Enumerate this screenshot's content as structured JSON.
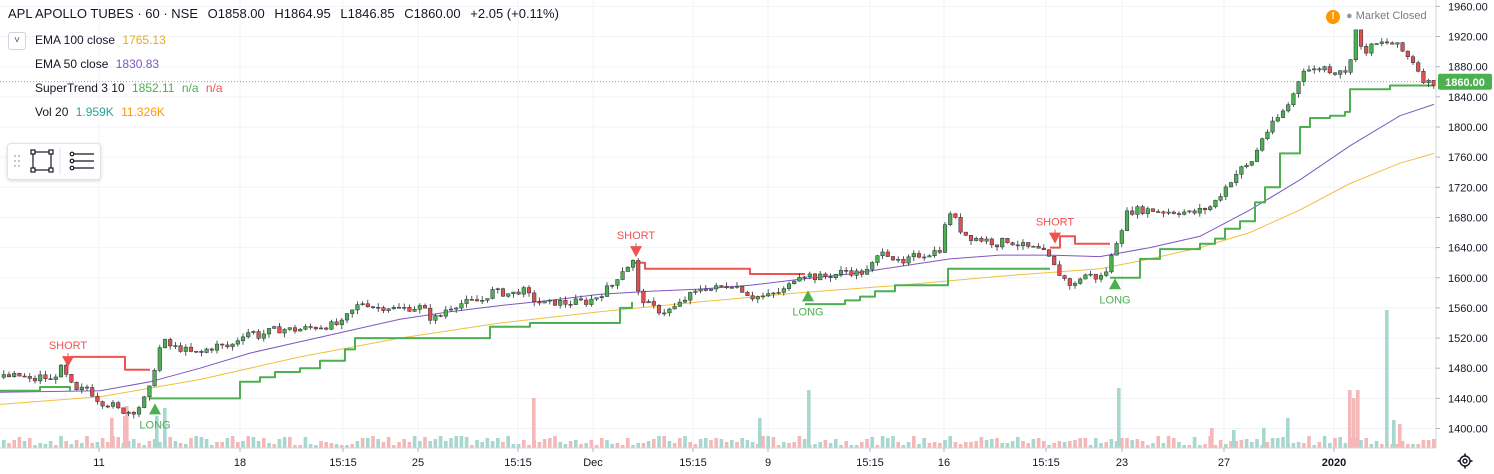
{
  "header": {
    "symbol": "APL APOLLO TUBES · 60 · NSE",
    "open": "O1858.00",
    "high": "H1864.95",
    "low": "L1846.85",
    "close": "C1860.00",
    "change": "+2.05 (+0.11%)",
    "market_status": "Market Closed",
    "collapse_glyph": "˅"
  },
  "legend": [
    {
      "label": "EMA 100 close",
      "value": "1765.13",
      "color": "#e5ac21"
    },
    {
      "label": "EMA 50 close",
      "value": "1830.83",
      "color": "#7e57c2"
    },
    {
      "label": "SuperTrend 3 10",
      "value": "1852.11",
      "value2": "n/a",
      "value3": "n/a",
      "color": "#4caf50",
      "color2": "#ef5350"
    },
    {
      "label": "Vol 20",
      "value": "1.959K",
      "value2": "11.326K",
      "color": "#26a69a",
      "color2": "#ff9800"
    }
  ],
  "colors": {
    "up": "#4caf50",
    "down": "#e05050",
    "ema100": "#f0c040",
    "ema50": "#7e57c2",
    "st_up": "#4caf50",
    "st_down": "#ef5350",
    "vol_up": "#a7d7cf",
    "vol_down": "#f4b8b8",
    "grid": "#f0f3fa",
    "axis_text": "#131722",
    "last_price_bg": "#4caf50"
  },
  "chart_data": {
    "type": "candlestick",
    "title": "APL APOLLO TUBES · 60 · NSE",
    "y_ticks": [
      1400,
      1440,
      1480,
      1520,
      1560,
      1600,
      1640,
      1680,
      1720,
      1760,
      1800,
      1840,
      1880,
      1920,
      1960
    ],
    "y_range": [
      1385,
      1970
    ],
    "x_ticks": [
      "11",
      "18",
      "15:15",
      "25",
      "15:15",
      "Dec",
      "15:15",
      "9",
      "15:15",
      "16",
      "15:15",
      "23",
      "27",
      "2020"
    ],
    "bold_ticks": [
      "2020"
    ],
    "last_price": 1860.0,
    "last_price_label": "1860.00",
    "ema100_end": 1765.13,
    "ema50_end": 1830.83,
    "supertrend_end": 1852.11,
    "close_path": [
      [
        0,
        1468
      ],
      [
        20,
        1470
      ],
      [
        30,
        1462
      ],
      [
        40,
        1470
      ],
      [
        50,
        1462
      ],
      [
        55,
        1475
      ],
      [
        60,
        1480
      ],
      [
        68,
        1460
      ],
      [
        75,
        1448
      ],
      [
        85,
        1455
      ],
      [
        95,
        1440
      ],
      [
        100,
        1435
      ],
      [
        110,
        1432
      ],
      [
        115,
        1425
      ],
      [
        130,
        1422
      ],
      [
        140,
        1432
      ],
      [
        150,
        1458
      ],
      [
        155,
        1500
      ],
      [
        162,
        1515
      ],
      [
        170,
        1508
      ],
      [
        180,
        1506
      ],
      [
        190,
        1500
      ],
      [
        200,
        1500
      ],
      [
        205,
        1505
      ],
      [
        215,
        1510
      ],
      [
        225,
        1508
      ],
      [
        232,
        1512
      ],
      [
        240,
        1525
      ],
      [
        250,
        1530
      ],
      [
        255,
        1522
      ],
      [
        270,
        1530
      ],
      [
        280,
        1532
      ],
      [
        290,
        1531
      ],
      [
        300,
        1532
      ],
      [
        310,
        1534
      ],
      [
        320,
        1536
      ],
      [
        330,
        1537
      ],
      [
        340,
        1539
      ],
      [
        345,
        1548
      ],
      [
        355,
        1562
      ],
      [
        362,
        1568
      ],
      [
        375,
        1560
      ],
      [
        385,
        1562
      ],
      [
        395,
        1558
      ],
      [
        405,
        1560
      ],
      [
        420,
        1561
      ],
      [
        430,
        1545
      ],
      [
        440,
        1550
      ],
      [
        445,
        1560
      ],
      [
        455,
        1565
      ],
      [
        470,
        1568
      ],
      [
        480,
        1570
      ],
      [
        490,
        1582
      ],
      [
        500,
        1580
      ],
      [
        510,
        1578
      ],
      [
        520,
        1585
      ],
      [
        525,
        1578
      ],
      [
        535,
        1568
      ],
      [
        545,
        1565
      ],
      [
        555,
        1568
      ],
      [
        565,
        1566
      ],
      [
        575,
        1568
      ],
      [
        585,
        1568
      ],
      [
        595,
        1575
      ],
      [
        605,
        1585
      ],
      [
        612,
        1592
      ],
      [
        618,
        1608
      ],
      [
        625,
        1615
      ],
      [
        632,
        1622
      ],
      [
        636,
        1580
      ],
      [
        645,
        1565
      ],
      [
        652,
        1560
      ],
      [
        660,
        1555
      ],
      [
        670,
        1558
      ],
      [
        678,
        1565
      ],
      [
        686,
        1575
      ],
      [
        694,
        1580
      ],
      [
        700,
        1588
      ],
      [
        710,
        1585
      ],
      [
        720,
        1588
      ],
      [
        730,
        1592
      ],
      [
        740,
        1585
      ],
      [
        750,
        1575
      ],
      [
        758,
        1575
      ],
      [
        765,
        1575
      ],
      [
        775,
        1580
      ],
      [
        785,
        1585
      ],
      [
        795,
        1605
      ],
      [
        805,
        1605
      ],
      [
        815,
        1600
      ],
      [
        825,
        1602
      ],
      [
        835,
        1605
      ],
      [
        845,
        1610
      ],
      [
        855,
        1606
      ],
      [
        865,
        1608
      ],
      [
        875,
        1625
      ],
      [
        880,
        1640
      ],
      [
        890,
        1628
      ],
      [
        900,
        1615
      ],
      [
        908,
        1625
      ],
      [
        915,
        1630
      ],
      [
        925,
        1632
      ],
      [
        935,
        1636
      ],
      [
        940,
        1640
      ],
      [
        946,
        1692
      ],
      [
        952,
        1680
      ],
      [
        958,
        1665
      ],
      [
        966,
        1655
      ],
      [
        975,
        1652
      ],
      [
        985,
        1650
      ],
      [
        995,
        1645
      ],
      [
        1005,
        1650
      ],
      [
        1015,
        1645
      ],
      [
        1025,
        1640
      ],
      [
        1035,
        1638
      ],
      [
        1045,
        1630
      ],
      [
        1052,
        1615
      ],
      [
        1058,
        1605
      ],
      [
        1065,
        1595
      ],
      [
        1072,
        1588
      ],
      [
        1078,
        1600
      ],
      [
        1085,
        1605
      ],
      [
        1095,
        1600
      ],
      [
        1102,
        1602
      ],
      [
        1108,
        1620
      ],
      [
        1112,
        1640
      ],
      [
        1118,
        1660
      ],
      [
        1125,
        1685
      ],
      [
        1132,
        1690
      ],
      [
        1140,
        1690
      ],
      [
        1150,
        1690
      ],
      [
        1160,
        1688
      ],
      [
        1170,
        1688
      ],
      [
        1180,
        1688
      ],
      [
        1190,
        1685
      ],
      [
        1200,
        1690
      ],
      [
        1210,
        1695
      ],
      [
        1218,
        1710
      ],
      [
        1225,
        1722
      ],
      [
        1232,
        1735
      ],
      [
        1240,
        1745
      ],
      [
        1248,
        1750
      ],
      [
        1254,
        1765
      ],
      [
        1260,
        1785
      ],
      [
        1266,
        1795
      ],
      [
        1272,
        1805
      ],
      [
        1278,
        1815
      ],
      [
        1284,
        1825
      ],
      [
        1290,
        1838
      ],
      [
        1296,
        1860
      ],
      [
        1302,
        1878
      ],
      [
        1308,
        1876
      ],
      [
        1314,
        1875
      ],
      [
        1320,
        1880
      ],
      [
        1326,
        1878
      ],
      [
        1332,
        1872
      ],
      [
        1338,
        1878
      ],
      [
        1344,
        1870
      ],
      [
        1350,
        1900
      ],
      [
        1355,
        1935
      ],
      [
        1360,
        1898
      ],
      [
        1368,
        1905
      ],
      [
        1376,
        1910
      ],
      [
        1384,
        1912
      ],
      [
        1392,
        1910
      ],
      [
        1398,
        1905
      ],
      [
        1404,
        1895
      ],
      [
        1410,
        1890
      ],
      [
        1415,
        1880
      ],
      [
        1420,
        1865
      ],
      [
        1428,
        1858
      ],
      [
        1434,
        1860
      ]
    ],
    "ema100": [
      [
        0,
        1432
      ],
      [
        100,
        1442
      ],
      [
        200,
        1465
      ],
      [
        300,
        1495
      ],
      [
        400,
        1520
      ],
      [
        500,
        1540
      ],
      [
        600,
        1555
      ],
      [
        700,
        1568
      ],
      [
        800,
        1580
      ],
      [
        900,
        1590
      ],
      [
        1000,
        1602
      ],
      [
        1050,
        1607
      ],
      [
        1100,
        1612
      ],
      [
        1150,
        1625
      ],
      [
        1200,
        1640
      ],
      [
        1250,
        1660
      ],
      [
        1300,
        1690
      ],
      [
        1350,
        1725
      ],
      [
        1400,
        1752
      ],
      [
        1434,
        1765
      ]
    ],
    "ema50": [
      [
        0,
        1448
      ],
      [
        100,
        1450
      ],
      [
        150,
        1462
      ],
      [
        200,
        1480
      ],
      [
        250,
        1500
      ],
      [
        300,
        1515
      ],
      [
        350,
        1530
      ],
      [
        400,
        1545
      ],
      [
        450,
        1555
      ],
      [
        500,
        1563
      ],
      [
        550,
        1570
      ],
      [
        600,
        1578
      ],
      [
        650,
        1582
      ],
      [
        700,
        1585
      ],
      [
        750,
        1590
      ],
      [
        800,
        1598
      ],
      [
        850,
        1605
      ],
      [
        900,
        1615
      ],
      [
        950,
        1625
      ],
      [
        1000,
        1630
      ],
      [
        1050,
        1630
      ],
      [
        1100,
        1628
      ],
      [
        1150,
        1640
      ],
      [
        1200,
        1655
      ],
      [
        1250,
        1690
      ],
      [
        1300,
        1730
      ],
      [
        1350,
        1775
      ],
      [
        1400,
        1815
      ],
      [
        1434,
        1830
      ]
    ],
    "supertrend": [
      {
        "trend": "up",
        "points": [
          [
            0,
            1450
          ],
          [
            30,
            1450
          ],
          [
            40,
            1455
          ],
          [
            60,
            1455
          ],
          [
            70,
            1450
          ]
        ]
      },
      {
        "trend": "down",
        "points": [
          [
            70,
            1495
          ],
          [
            100,
            1495
          ],
          [
            115,
            1495
          ],
          [
            125,
            1478
          ],
          [
            150,
            1478
          ]
        ]
      },
      {
        "trend": "up",
        "points": [
          [
            150,
            1440
          ],
          [
            230,
            1440
          ],
          [
            240,
            1462
          ],
          [
            260,
            1468
          ],
          [
            275,
            1475
          ],
          [
            300,
            1480
          ],
          [
            320,
            1490
          ],
          [
            345,
            1505
          ],
          [
            355,
            1520
          ],
          [
            480,
            1520
          ],
          [
            490,
            1535
          ],
          [
            530,
            1540
          ],
          [
            610,
            1540
          ],
          [
            620,
            1560
          ],
          [
            632,
            1568
          ]
        ]
      },
      {
        "trend": "down",
        "points": [
          [
            632,
            1620
          ],
          [
            645,
            1612
          ],
          [
            745,
            1612
          ],
          [
            750,
            1605
          ],
          [
            805,
            1605
          ]
        ]
      },
      {
        "trend": "up",
        "points": [
          [
            805,
            1565
          ],
          [
            830,
            1565
          ],
          [
            845,
            1570
          ],
          [
            860,
            1575
          ],
          [
            875,
            1582
          ],
          [
            895,
            1590
          ],
          [
            935,
            1590
          ],
          [
            948,
            1612
          ],
          [
            1050,
            1612
          ]
        ]
      },
      {
        "trend": "down",
        "points": [
          [
            1050,
            1640
          ],
          [
            1060,
            1655
          ],
          [
            1065,
            1655
          ],
          [
            1075,
            1645
          ],
          [
            1110,
            1645
          ]
        ]
      },
      {
        "trend": "up",
        "points": [
          [
            1110,
            1600
          ],
          [
            1140,
            1625
          ],
          [
            1160,
            1638
          ],
          [
            1200,
            1645
          ],
          [
            1215,
            1652
          ],
          [
            1225,
            1665
          ],
          [
            1240,
            1675
          ],
          [
            1255,
            1700
          ],
          [
            1265,
            1720
          ],
          [
            1280,
            1765
          ],
          [
            1300,
            1800
          ],
          [
            1310,
            1812
          ],
          [
            1330,
            1815
          ],
          [
            1345,
            1820
          ],
          [
            1350,
            1850
          ],
          [
            1385,
            1850
          ],
          [
            1390,
            1855
          ],
          [
            1434,
            1855
          ]
        ]
      }
    ],
    "signals": [
      {
        "type": "short",
        "label": "SHORT",
        "x": 68,
        "price": 1484
      },
      {
        "type": "long",
        "label": "LONG",
        "x": 155,
        "price": 1432
      },
      {
        "type": "short",
        "label": "SHORT",
        "x": 636,
        "price": 1630
      },
      {
        "type": "long",
        "label": "LONG",
        "x": 808,
        "price": 1582
      },
      {
        "type": "short",
        "label": "SHORT",
        "x": 1055,
        "price": 1648
      },
      {
        "type": "long",
        "label": "LONG",
        "x": 1115,
        "price": 1598
      }
    ],
    "volume": {
      "up_tall": [
        [
          155,
          32
        ],
        [
          163,
          40
        ],
        [
          758,
          30
        ],
        [
          807,
          58
        ],
        [
          1117,
          60
        ],
        [
          1385,
          138
        ],
        [
          1392,
          28
        ],
        [
          1286,
          30
        ],
        [
          1232,
          18
        ],
        [
          1262,
          20
        ]
      ],
      "down_tall": [
        [
          110,
          30
        ],
        [
          123,
          32
        ],
        [
          125,
          42
        ],
        [
          532,
          50
        ],
        [
          1348,
          58
        ],
        [
          1352,
          50
        ],
        [
          1356,
          58
        ],
        [
          1398,
          24
        ],
        [
          1210,
          20
        ]
      ]
    }
  }
}
